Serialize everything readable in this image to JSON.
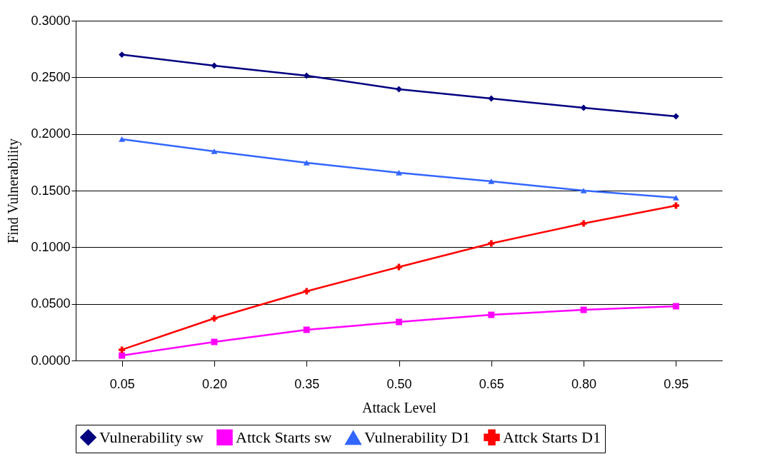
{
  "chart_data": {
    "type": "line",
    "xlabel": "Attack Level",
    "ylabel": "Find Vulnerability",
    "categories": [
      "0.05",
      "0.20",
      "0.35",
      "0.50",
      "0.65",
      "0.80",
      "0.95"
    ],
    "series": [
      {
        "name": "Vulnerability sw",
        "color": "#000080",
        "marker": "diamond",
        "values": [
          0.27,
          0.2603,
          0.2515,
          0.2395,
          0.2313,
          0.2231,
          0.2155
        ]
      },
      {
        "name": "Attck Starts sw",
        "color": "#ff00ff",
        "marker": "square",
        "values": [
          0.0044,
          0.0164,
          0.0271,
          0.034,
          0.0403,
          0.0447,
          0.0479
        ]
      },
      {
        "name": "Vulnerability D1",
        "color": "#3366ff",
        "marker": "triangle",
        "values": [
          0.1954,
          0.1847,
          0.1746,
          0.1658,
          0.1582,
          0.15,
          0.1437
        ]
      },
      {
        "name": "Attck Starts D1",
        "color": "#ff0000",
        "marker": "cross",
        "values": [
          0.0095,
          0.0372,
          0.0611,
          0.0826,
          0.1034,
          0.121,
          0.1368
        ]
      }
    ],
    "ylim": [
      0,
      0.3
    ],
    "yticks": [
      {
        "value": 0,
        "label": "0.0000"
      },
      {
        "value": 0.05,
        "label": "0.0500"
      },
      {
        "value": 0.1,
        "label": "0.1000"
      },
      {
        "value": 0.15,
        "label": "0.1500"
      },
      {
        "value": 0.2,
        "label": "0.2000"
      },
      {
        "value": 0.25,
        "label": "0.2500"
      },
      {
        "value": 0.3,
        "label": "0.3000"
      }
    ],
    "grid": "y",
    "legend": "bottom"
  }
}
